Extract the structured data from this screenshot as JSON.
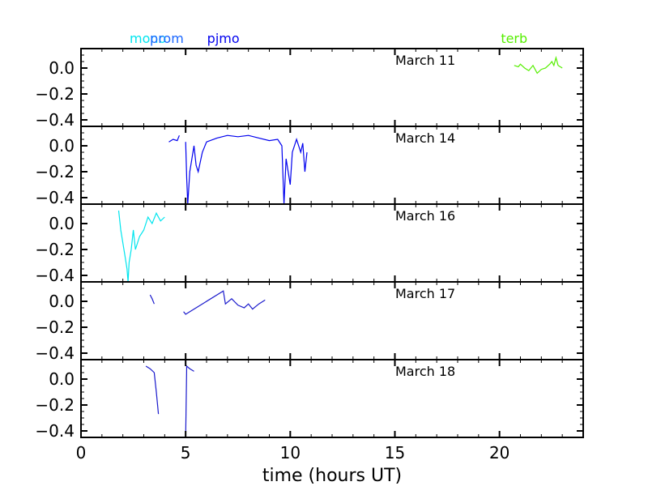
{
  "chart_data": {
    "type": "line",
    "xlabel": "time (hours UT)",
    "xlim": [
      0,
      24
    ],
    "ylim": [
      -0.45,
      0.15
    ],
    "xticks": [
      0,
      5,
      10,
      15,
      20
    ],
    "yticks": [
      0.0,
      -0.2,
      -0.4
    ],
    "ytick_labels": [
      "0.0",
      "−0.2",
      "−0.4"
    ],
    "site_markers": [
      {
        "name": "mono",
        "x": 3.2,
        "color": "#00e5ee"
      },
      {
        "name": "prom",
        "x": 4.1,
        "color": "#1a66ff"
      },
      {
        "name": "pjmo",
        "x": 6.8,
        "color": "#0000ee"
      },
      {
        "name": "terb",
        "x": 20.7,
        "color": "#55ee00"
      }
    ],
    "panels": [
      {
        "label": "March 11",
        "series": [
          {
            "color": "#55ee00",
            "segments": [
              [
                [
                  20.7,
                  0.02
                ],
                [
                  20.9,
                  0.01
                ],
                [
                  21.0,
                  0.03
                ],
                [
                  21.2,
                  0.0
                ],
                [
                  21.4,
                  -0.02
                ],
                [
                  21.6,
                  0.02
                ],
                [
                  21.8,
                  -0.04
                ],
                [
                  22.0,
                  -0.01
                ],
                [
                  22.2,
                  0.0
                ],
                [
                  22.4,
                  0.03
                ],
                [
                  22.5,
                  0.05
                ],
                [
                  22.6,
                  0.02
                ],
                [
                  22.7,
                  0.08
                ],
                [
                  22.8,
                  0.02
                ],
                [
                  22.9,
                  0.01
                ],
                [
                  23.0,
                  0.0
                ]
              ]
            ]
          }
        ]
      },
      {
        "label": "March 14",
        "series": [
          {
            "color": "#0000ee",
            "segments": [
              [
                [
                  4.2,
                  0.03
                ],
                [
                  4.4,
                  0.05
                ],
                [
                  4.6,
                  0.04
                ],
                [
                  4.7,
                  0.08
                ]
              ],
              [
                [
                  5.0,
                  0.03
                ],
                [
                  5.05,
                  -0.25
                ],
                [
                  5.1,
                  -0.45
                ],
                [
                  5.2,
                  -0.2
                ],
                [
                  5.3,
                  -0.1
                ],
                [
                  5.4,
                  0.0
                ],
                [
                  5.5,
                  -0.15
                ],
                [
                  5.6,
                  -0.2
                ],
                [
                  5.8,
                  -0.05
                ],
                [
                  6.0,
                  0.03
                ],
                [
                  6.5,
                  0.06
                ],
                [
                  7.0,
                  0.08
                ],
                [
                  7.5,
                  0.07
                ],
                [
                  8.0,
                  0.08
                ],
                [
                  8.5,
                  0.06
                ],
                [
                  9.0,
                  0.04
                ],
                [
                  9.4,
                  0.05
                ],
                [
                  9.6,
                  0.0
                ],
                [
                  9.7,
                  -0.45
                ],
                [
                  9.8,
                  -0.1
                ],
                [
                  10.0,
                  -0.3
                ],
                [
                  10.1,
                  -0.05
                ],
                [
                  10.3,
                  0.05
                ],
                [
                  10.5,
                  -0.05
                ],
                [
                  10.6,
                  0.02
                ],
                [
                  10.7,
                  -0.2
                ],
                [
                  10.8,
                  -0.05
                ]
              ]
            ]
          }
        ]
      },
      {
        "label": "March 16",
        "series": [
          {
            "color": "#00e5ee",
            "segments": [
              [
                [
                  1.8,
                  0.1
                ],
                [
                  1.9,
                  -0.05
                ],
                [
                  2.0,
                  -0.15
                ],
                [
                  2.1,
                  -0.25
                ],
                [
                  2.2,
                  -0.35
                ],
                [
                  2.25,
                  -0.45
                ],
                [
                  2.3,
                  -0.3
                ],
                [
                  2.4,
                  -0.2
                ],
                [
                  2.5,
                  -0.05
                ],
                [
                  2.6,
                  -0.2
                ],
                [
                  2.8,
                  -0.1
                ],
                [
                  3.0,
                  -0.05
                ],
                [
                  3.2,
                  0.05
                ],
                [
                  3.4,
                  0.0
                ],
                [
                  3.6,
                  0.08
                ],
                [
                  3.8,
                  0.02
                ],
                [
                  4.0,
                  0.05
                ]
              ]
            ]
          }
        ]
      },
      {
        "label": "March 17",
        "series": [
          {
            "color": "#1a1acc",
            "segments": [
              [
                [
                  3.3,
                  0.05
                ],
                [
                  3.4,
                  0.02
                ],
                [
                  3.5,
                  -0.02
                ]
              ],
              [
                [
                  4.9,
                  -0.08
                ],
                [
                  5.0,
                  -0.1
                ],
                [
                  6.8,
                  0.08
                ],
                [
                  6.9,
                  -0.02
                ],
                [
                  7.2,
                  0.02
                ],
                [
                  7.5,
                  -0.03
                ],
                [
                  7.8,
                  -0.05
                ],
                [
                  8.0,
                  -0.02
                ],
                [
                  8.2,
                  -0.06
                ],
                [
                  8.5,
                  -0.02
                ],
                [
                  8.8,
                  0.01
                ]
              ]
            ]
          }
        ]
      },
      {
        "label": "March 18",
        "series": [
          {
            "color": "#1a1acc",
            "segments": [
              [
                [
                  3.1,
                  0.1
                ],
                [
                  3.3,
                  0.08
                ],
                [
                  3.5,
                  0.05
                ],
                [
                  3.6,
                  -0.1
                ],
                [
                  3.7,
                  -0.27
                ]
              ],
              [
                [
                  5.0,
                  -0.45
                ],
                [
                  5.05,
                  0.1
                ],
                [
                  5.2,
                  0.08
                ],
                [
                  5.4,
                  0.06
                ]
              ]
            ]
          }
        ]
      }
    ]
  }
}
